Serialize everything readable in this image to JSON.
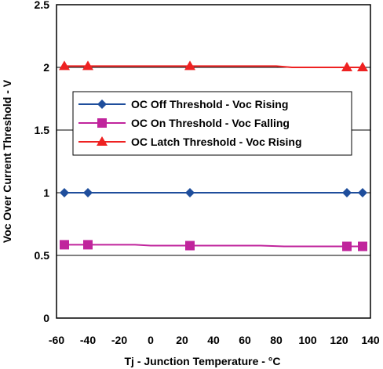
{
  "chart_data": {
    "type": "line",
    "xlabel": "Tj - Junction Temperature -  °C",
    "ylabel": "Voc Over Current Threshold - V",
    "xlim": [
      -60,
      140
    ],
    "ylim": [
      0,
      2.5
    ],
    "xticks": [
      "-60",
      "-40",
      "-20",
      "0",
      "20",
      "40",
      "60",
      "80",
      "100",
      "120",
      "140"
    ],
    "yticks": [
      "0",
      "0.5",
      "1",
      "1.5",
      "2",
      "2.5"
    ],
    "grid": "horizontal",
    "legend_position": "center-left",
    "series": [
      {
        "name": "OC Off Threshold - Voc Rising",
        "color": "#1f4e9c",
        "marker": "diamond",
        "line": [
          [
            -55,
            1.0
          ],
          [
            -40,
            1.0
          ],
          [
            0,
            1.0
          ],
          [
            25,
            1.0
          ],
          [
            60,
            1.0
          ],
          [
            100,
            1.0
          ],
          [
            125,
            1.0
          ],
          [
            135,
            1.0
          ]
        ],
        "markers": [
          [
            -55,
            1.0
          ],
          [
            -40,
            1.0
          ],
          [
            25,
            1.0
          ],
          [
            125,
            1.0
          ],
          [
            135,
            1.0
          ]
        ]
      },
      {
        "name": "OC On Threshold - Voc Falling",
        "color": "#c0249c",
        "marker": "square",
        "line": [
          [
            -55,
            0.585
          ],
          [
            -40,
            0.585
          ],
          [
            -10,
            0.585
          ],
          [
            0,
            0.578
          ],
          [
            25,
            0.578
          ],
          [
            70,
            0.578
          ],
          [
            85,
            0.572
          ],
          [
            125,
            0.572
          ],
          [
            135,
            0.572
          ]
        ],
        "markers": [
          [
            -55,
            0.585
          ],
          [
            -40,
            0.585
          ],
          [
            25,
            0.578
          ],
          [
            125,
            0.572
          ],
          [
            135,
            0.572
          ]
        ]
      },
      {
        "name": "OC Latch Threshold - Voc Rising",
        "color": "#ee2222",
        "marker": "triangle",
        "line": [
          [
            -55,
            2.01
          ],
          [
            -40,
            2.01
          ],
          [
            25,
            2.01
          ],
          [
            80,
            2.01
          ],
          [
            90,
            2.0
          ],
          [
            125,
            2.0
          ],
          [
            135,
            2.0
          ]
        ],
        "markers": [
          [
            -55,
            2.01
          ],
          [
            -40,
            2.01
          ],
          [
            25,
            2.01
          ],
          [
            125,
            2.0
          ],
          [
            135,
            2.0
          ]
        ]
      }
    ]
  }
}
